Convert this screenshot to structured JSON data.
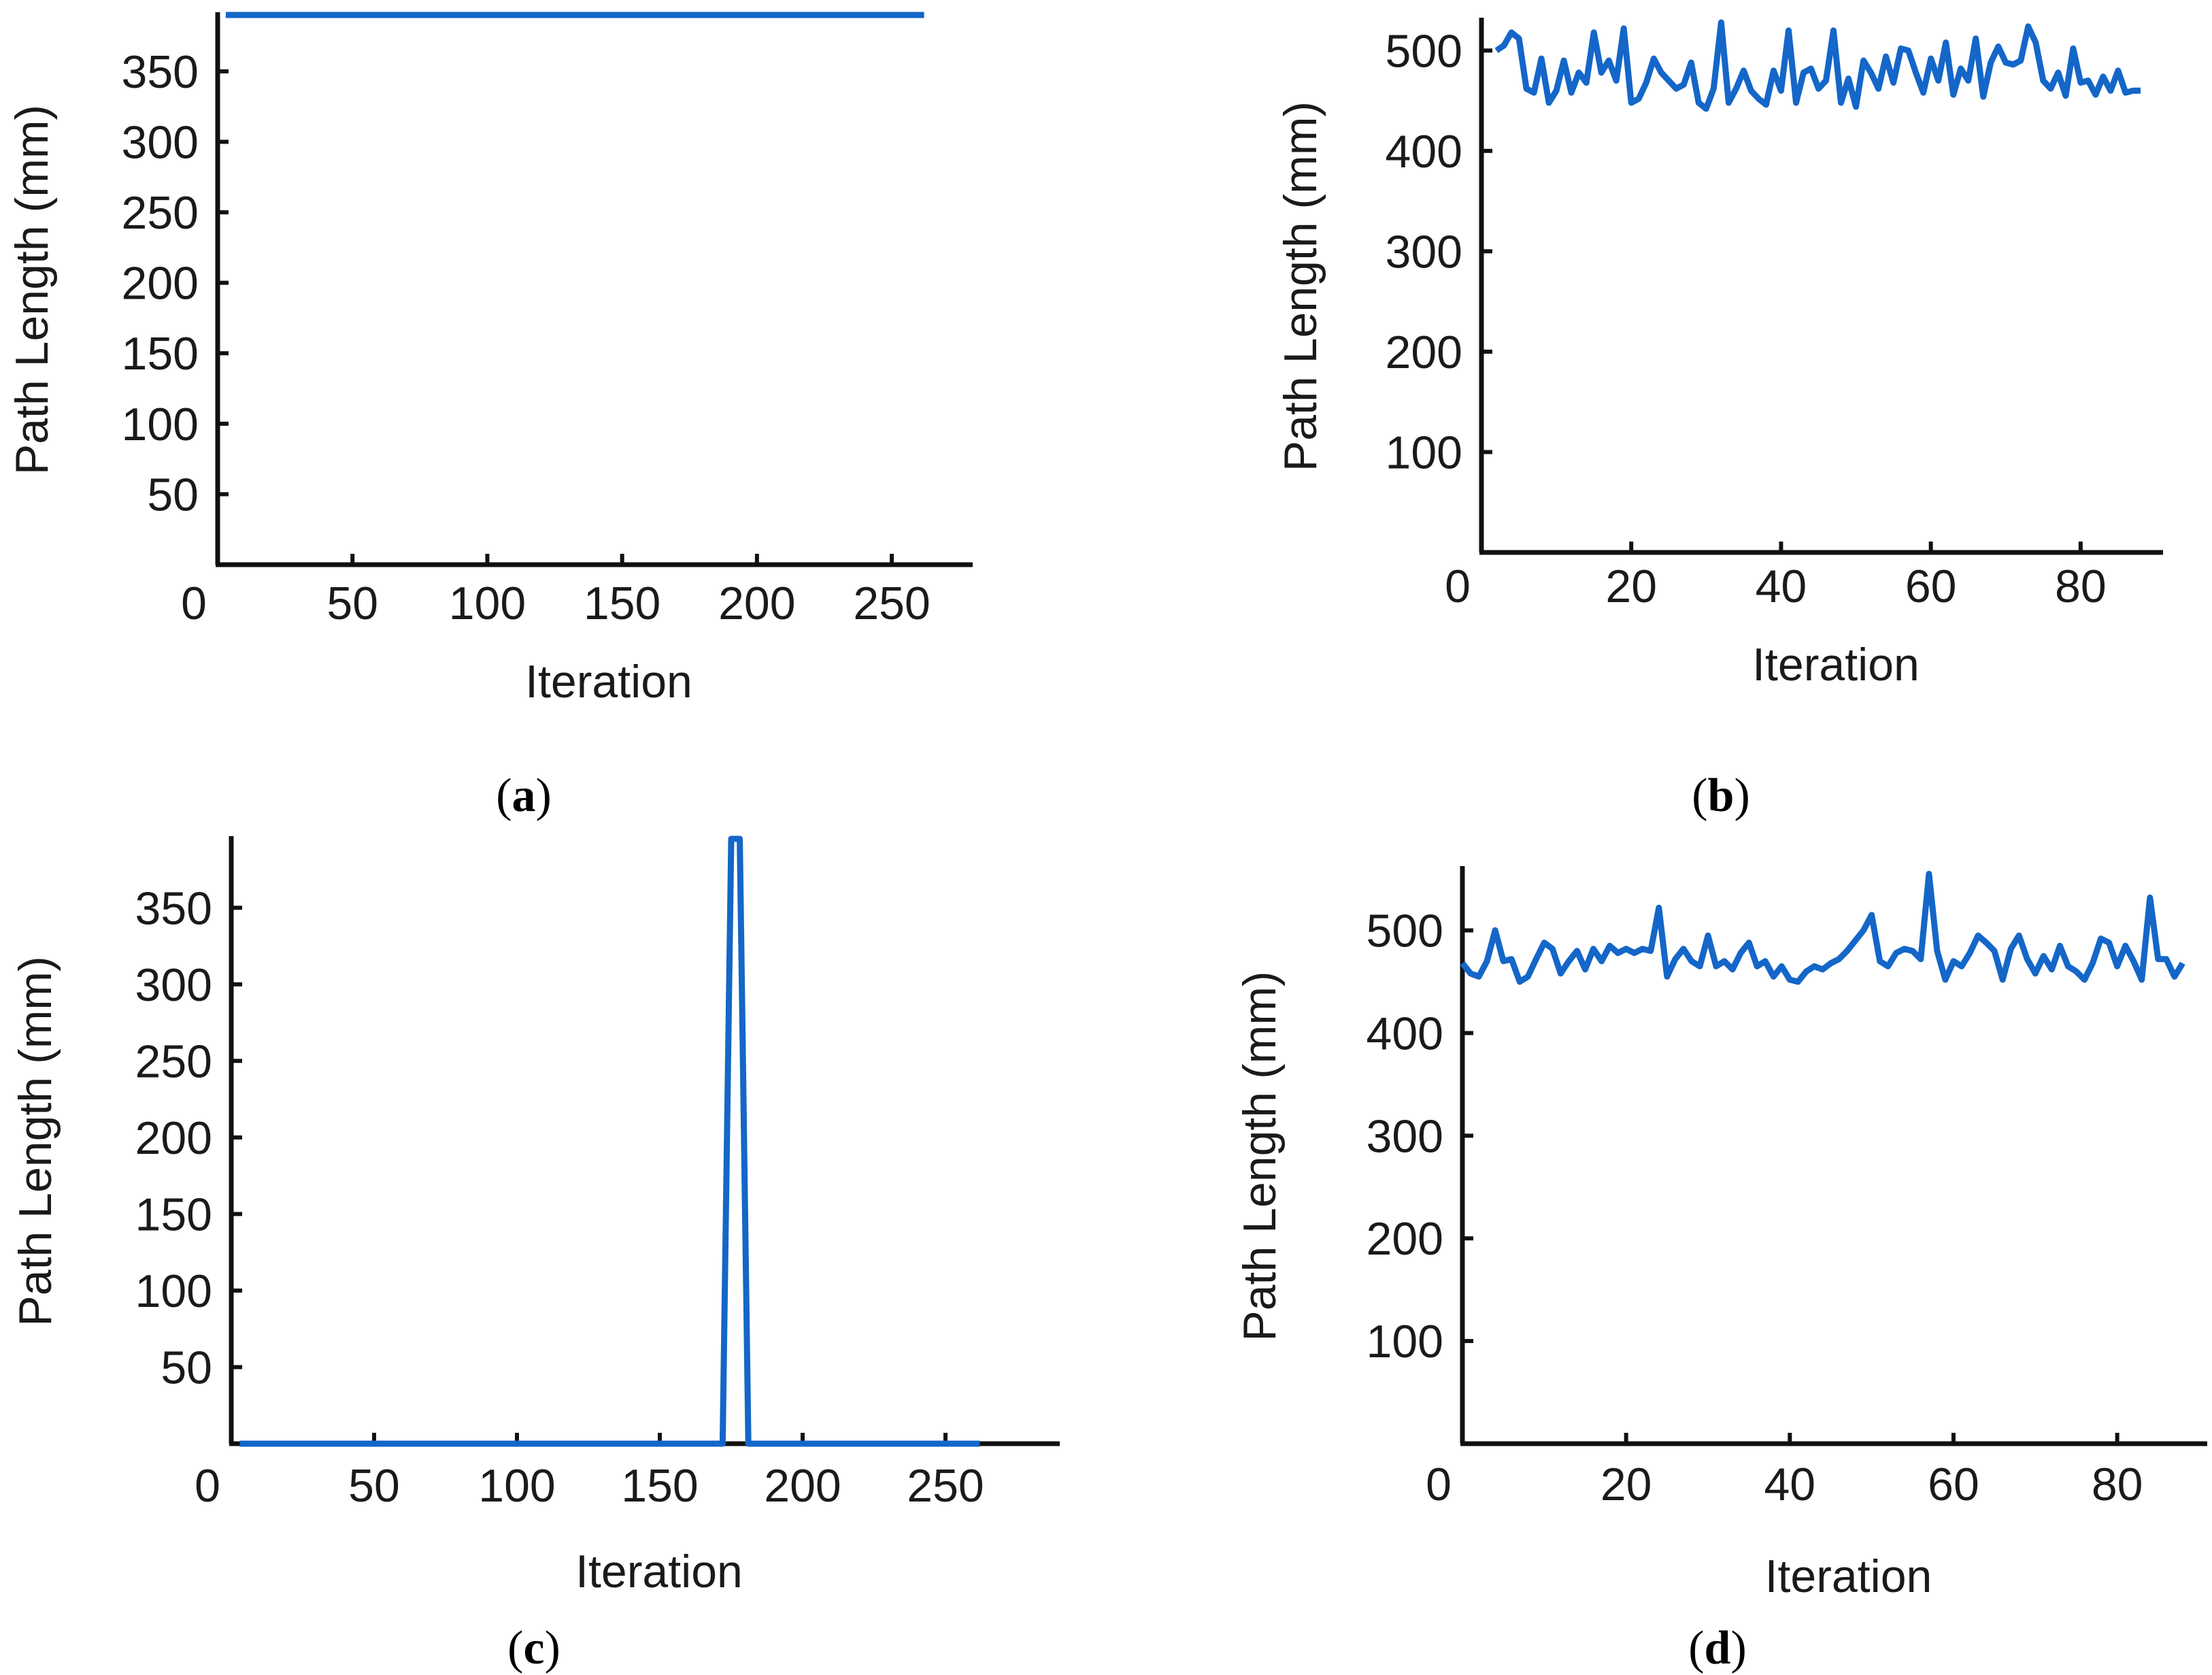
{
  "colors": {
    "line": "#1466c8",
    "axis": "#111111",
    "text": "#1a1a1a"
  },
  "chart_data": [
    {
      "id": "a",
      "type": "line",
      "caption": "a",
      "xlabel": "Iteration",
      "ylabel": "Path Length (mm)",
      "x_ticks": [
        "0",
        "50",
        "100",
        "150",
        "200",
        "250"
      ],
      "y_ticks": [
        "50",
        "100",
        "150",
        "200",
        "250",
        "300",
        "350"
      ],
      "xlim": [
        0,
        280
      ],
      "ylim": [
        0,
        390
      ],
      "series": [
        {
          "x": [
            3,
            262
          ],
          "y": [
            390,
            390
          ]
        }
      ]
    },
    {
      "id": "b",
      "type": "line",
      "caption": "b",
      "xlabel": "Iteration",
      "ylabel": "Path Length (mm)",
      "x_ticks": [
        "0",
        "20",
        "40",
        "60",
        "80"
      ],
      "y_ticks": [
        "100",
        "200",
        "300",
        "400",
        "500"
      ],
      "xlim": [
        0,
        91
      ],
      "ylim": [
        0,
        530
      ],
      "series": [
        {
          "x": [
            2,
            3,
            4,
            5,
            6,
            7,
            8,
            9,
            10,
            11,
            12,
            13,
            14,
            15,
            16,
            17,
            18,
            19,
            20,
            21,
            22,
            23,
            24,
            25,
            26,
            27,
            28,
            29,
            30,
            31,
            32,
            33,
            34,
            35,
            36,
            37,
            38,
            39,
            40,
            41,
            42,
            43,
            44,
            45,
            46,
            47,
            48,
            49,
            50,
            51,
            52,
            53,
            54,
            55,
            56,
            57,
            58,
            59,
            60,
            61,
            62,
            63,
            64,
            65,
            66,
            67,
            68,
            69,
            70,
            71,
            72,
            73,
            74,
            75,
            76,
            77,
            78,
            79,
            80,
            81,
            82,
            83,
            84,
            85,
            86,
            87,
            88
          ],
          "y": [
            500,
            505,
            518,
            512,
            462,
            458,
            492,
            448,
            460,
            490,
            458,
            478,
            468,
            518,
            478,
            490,
            470,
            522,
            448,
            452,
            468,
            492,
            478,
            470,
            462,
            466,
            488,
            448,
            442,
            462,
            528,
            448,
            462,
            480,
            460,
            452,
            446,
            480,
            460,
            520,
            448,
            478,
            482,
            462,
            470,
            520,
            448,
            472,
            444,
            490,
            478,
            462,
            494,
            468,
            502,
            500,
            478,
            458,
            492,
            470,
            508,
            456,
            482,
            470,
            512,
            454,
            488,
            504,
            488,
            486,
            490,
            524,
            508,
            470,
            462,
            478,
            455,
            502,
            468,
            470,
            456,
            474,
            460,
            480,
            458,
            460,
            460
          ]
        }
      ]
    },
    {
      "id": "c",
      "type": "line",
      "caption": "c",
      "xlabel": "Iteration",
      "ylabel": "Path Length (mm)",
      "x_ticks": [
        "0",
        "50",
        "100",
        "150",
        "200",
        "250"
      ],
      "y_ticks": [
        "50",
        "100",
        "150",
        "200",
        "250",
        "300",
        "350"
      ],
      "xlim": [
        0,
        290
      ],
      "ylim": [
        0,
        395
      ],
      "series": [
        {
          "x": [
            3,
            172,
            175,
            178,
            181,
            262
          ],
          "y": [
            0,
            0,
            395,
            395,
            0,
            0
          ]
        }
      ]
    },
    {
      "id": "d",
      "type": "line",
      "caption": "d",
      "xlabel": "Iteration",
      "ylabel": "Path Length (mm)",
      "x_ticks": [
        "0",
        "20",
        "40",
        "60",
        "80"
      ],
      "y_ticks": [
        "100",
        "200",
        "300",
        "400",
        "500"
      ],
      "xlim": [
        0,
        91
      ],
      "ylim": [
        0,
        560
      ],
      "series": [
        {
          "x": [
            0,
            1,
            2,
            3,
            4,
            5,
            6,
            7,
            8,
            9,
            10,
            11,
            12,
            13,
            14,
            15,
            16,
            17,
            18,
            19,
            20,
            21,
            22,
            23,
            24,
            25,
            26,
            27,
            28,
            29,
            30,
            31,
            32,
            33,
            34,
            35,
            36,
            37,
            38,
            39,
            40,
            41,
            42,
            43,
            44,
            45,
            46,
            47,
            48,
            49,
            50,
            51,
            52,
            53,
            54,
            55,
            56,
            57,
            58,
            59,
            60,
            61,
            62,
            63,
            64,
            65,
            66,
            67,
            68,
            69,
            70,
            71,
            72,
            73,
            74,
            75,
            76,
            77,
            78,
            79,
            80,
            81,
            82,
            83,
            84,
            85,
            86,
            87,
            88
          ],
          "y": [
            468,
            458,
            455,
            470,
            500,
            470,
            472,
            450,
            455,
            472,
            488,
            482,
            458,
            470,
            480,
            462,
            482,
            470,
            485,
            478,
            482,
            478,
            482,
            480,
            522,
            455,
            472,
            482,
            470,
            465,
            495,
            465,
            470,
            462,
            478,
            488,
            465,
            470,
            455,
            465,
            452,
            450,
            460,
            465,
            462,
            468,
            472,
            480,
            490,
            500,
            515,
            470,
            465,
            478,
            482,
            480,
            472,
            555,
            480,
            452,
            470,
            465,
            478,
            495,
            488,
            480,
            452,
            482,
            495,
            472,
            458,
            475,
            462,
            485,
            465,
            460,
            452,
            468,
            492,
            488,
            465,
            485,
            470,
            452,
            532,
            472,
            472,
            455,
            468
          ]
        }
      ]
    }
  ]
}
